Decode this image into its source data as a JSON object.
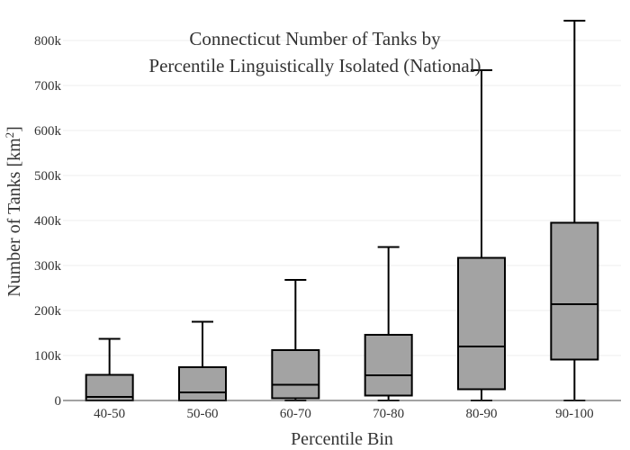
{
  "chart_data": {
    "type": "box",
    "title_lines": [
      "Connecticut Number of Tanks by",
      "Percentile Linguistically Isolated (National)"
    ],
    "xlabel": "Percentile Bin",
    "ylabel_main": "Number of Tanks  [km",
    "ylabel_sup": "2",
    "ylabel_end": "]",
    "ylim": [
      0,
      850000
    ],
    "yticks": [
      0,
      100000,
      200000,
      300000,
      400000,
      500000,
      600000,
      700000,
      800000
    ],
    "ytick_labels": [
      "0",
      "100k",
      "200k",
      "300k",
      "400k",
      "500k",
      "600k",
      "700k",
      "800k"
    ],
    "categories": [
      "40-50",
      "50-60",
      "60-70",
      "70-80",
      "80-90",
      "90-100"
    ],
    "boxes": [
      {
        "min": 0,
        "q1": 0,
        "median": 8000,
        "q3": 57000,
        "max": 137000
      },
      {
        "min": 0,
        "q1": 0,
        "median": 18000,
        "q3": 74000,
        "max": 175000
      },
      {
        "min": 0,
        "q1": 5000,
        "median": 35000,
        "q3": 112000,
        "max": 268000
      },
      {
        "min": 0,
        "q1": 11000,
        "median": 56000,
        "q3": 146000,
        "max": 341000
      },
      {
        "min": 0,
        "q1": 25000,
        "median": 120000,
        "q3": 317000,
        "max": 734000
      },
      {
        "min": 0,
        "q1": 91000,
        "median": 214000,
        "q3": 395000,
        "max": 844000
      }
    ],
    "box_color": "#a3a3a3",
    "line_color": "#000000",
    "grid": true
  }
}
